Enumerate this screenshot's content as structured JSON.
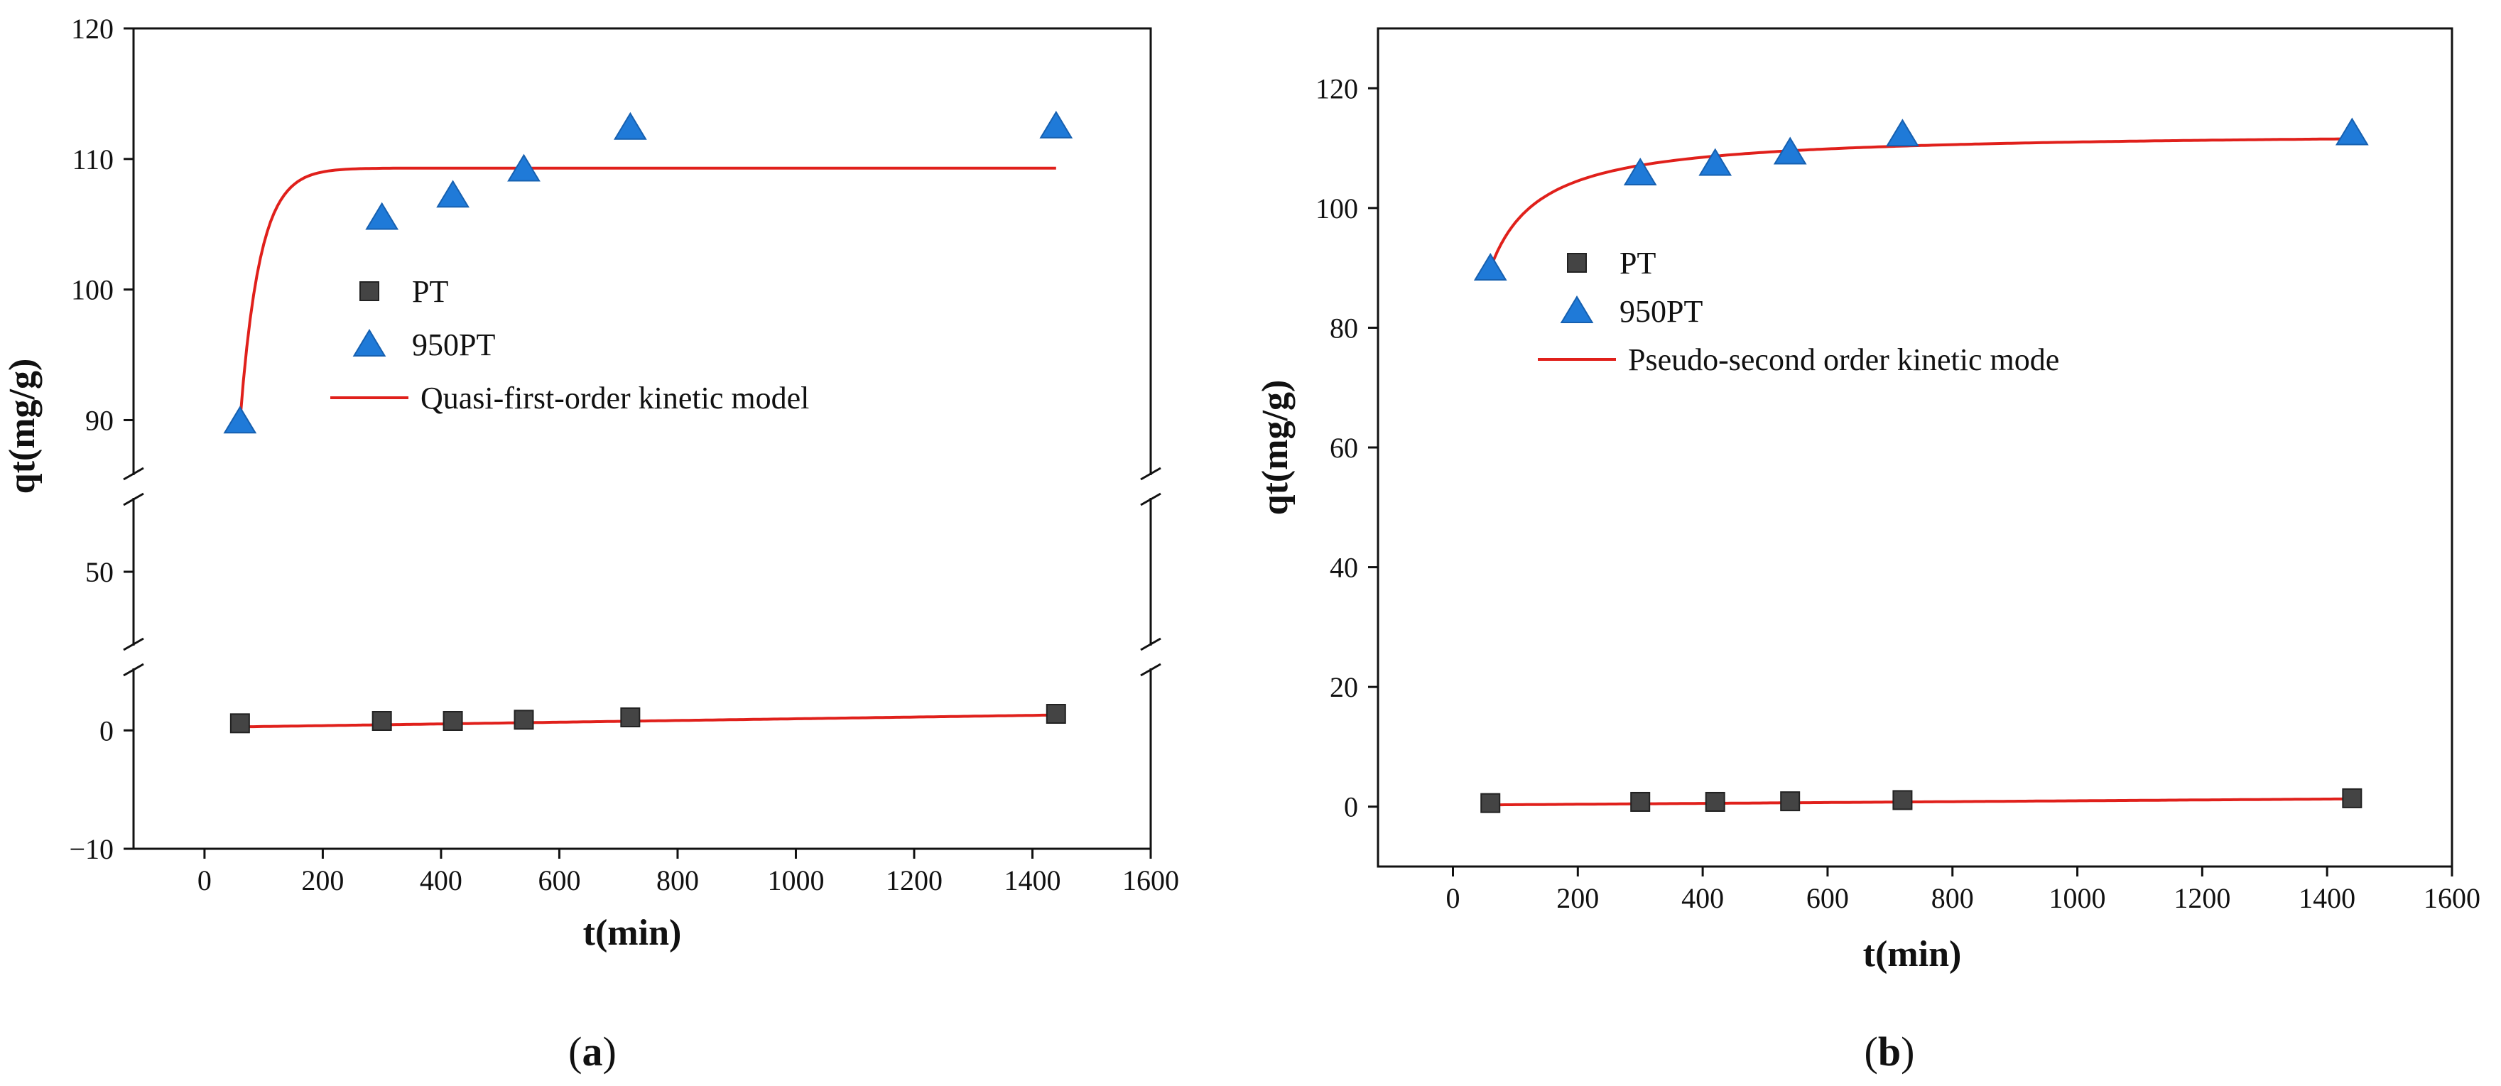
{
  "colors": {
    "axis": "#111111",
    "pt_marker": "#444444",
    "pt_marker_edge": "#222222",
    "tpt_marker": "#1f7ad8",
    "fit_line": "#e0201b",
    "background": "#ffffff"
  },
  "chart_data": [
    {
      "type": "scatter",
      "panel_label": "(a)",
      "panel_letter": "a",
      "xlabel": "t(min)",
      "ylabel": "qt(mg/g)",
      "xlim": [
        -120,
        1600
      ],
      "x_ticks": [
        0,
        200,
        400,
        600,
        800,
        1000,
        1200,
        1400,
        1600
      ],
      "x_tick_labels": [
        "0",
        "200",
        "400",
        "600",
        "800",
        "1000",
        "1200",
        "1400",
        "1600"
      ],
      "y_axis_broken": true,
      "y_segments": [
        {
          "range": [
            -10,
            5
          ],
          "ticks": [
            -10,
            0
          ],
          "tick_labels": [
            "−10",
            "0"
          ]
        },
        {
          "range": [
            40,
            60
          ],
          "ticks": [
            50
          ],
          "tick_labels": [
            "50"
          ]
        },
        {
          "range": [
            86,
            120
          ],
          "ticks": [
            90,
            100,
            110,
            120
          ],
          "tick_labels": [
            "90",
            "100",
            "110",
            "120"
          ]
        }
      ],
      "legend": {
        "position": "center-left",
        "entries": [
          {
            "label": "PT",
            "marker": "square",
            "color": "#444444"
          },
          {
            "label": "950PT",
            "marker": "triangle",
            "color": "#1f7ad8"
          },
          {
            "label": "Quasi-first-order kinetic model",
            "marker": "line",
            "color": "#e0201b"
          }
        ]
      },
      "series": [
        {
          "name": "PT",
          "marker": "square",
          "x": [
            60,
            300,
            420,
            540,
            720,
            1440
          ],
          "y": [
            0.6,
            0.8,
            0.8,
            0.9,
            1.1,
            1.4
          ]
        },
        {
          "name": "950PT",
          "marker": "triangle",
          "x": [
            60,
            300,
            420,
            540,
            720,
            1440
          ],
          "y": [
            89.9,
            105.5,
            107.2,
            109.2,
            112.4,
            112.5
          ]
        }
      ],
      "fits": [
        {
          "name": "Quasi-first-order kinetic model (950PT)",
          "model": "first-order",
          "qe": 109.3,
          "q0": 89.9,
          "k": 0.03,
          "x_range": [
            60,
            1440
          ]
        },
        {
          "name": "Quasi-first-order kinetic model (PT)",
          "model": "linear",
          "y_start": 0.3,
          "y_end": 1.3,
          "x_range": [
            60,
            1440
          ]
        }
      ]
    },
    {
      "type": "scatter",
      "panel_label": "(b)",
      "panel_letter": "b",
      "xlabel": "t(min)",
      "ylabel": "qt(mg/g)",
      "xlim": [
        -120,
        1600
      ],
      "x_ticks": [
        0,
        200,
        400,
        600,
        800,
        1000,
        1200,
        1400,
        1600
      ],
      "x_tick_labels": [
        "0",
        "200",
        "400",
        "600",
        "800",
        "1000",
        "1200",
        "1400",
        "1600"
      ],
      "ylim": [
        -10,
        130
      ],
      "y_ticks": [
        0,
        20,
        40,
        60,
        80,
        100,
        120
      ],
      "y_tick_labels": [
        "0",
        "20",
        "40",
        "60",
        "80",
        "100",
        "120"
      ],
      "legend": {
        "position": "center-left",
        "entries": [
          {
            "label": "PT",
            "marker": "square",
            "color": "#444444"
          },
          {
            "label": "950PT",
            "marker": "triangle",
            "color": "#1f7ad8"
          },
          {
            "label": "Pseudo-second order kinetic mode",
            "marker": "line",
            "color": "#e0201b"
          }
        ]
      },
      "series": [
        {
          "name": "PT",
          "marker": "square",
          "x": [
            60,
            300,
            420,
            540,
            720,
            1440
          ],
          "y": [
            0.6,
            0.8,
            0.8,
            0.9,
            1.1,
            1.4
          ]
        },
        {
          "name": "950PT",
          "marker": "triangle",
          "x": [
            60,
            300,
            420,
            540,
            720,
            1440
          ],
          "y": [
            89.9,
            105.8,
            107.4,
            109.3,
            112.3,
            112.5
          ]
        }
      ],
      "fits": [
        {
          "name": "Pseudo-second order kinetic mode (950PT)",
          "model": "second-order",
          "qe": 112.8,
          "t0": 60,
          "t_ref": 660,
          "q0": 89.9,
          "x_range": [
            60,
            1440
          ]
        },
        {
          "name": "Pseudo-second order kinetic mode (PT)",
          "model": "linear",
          "y_start": 0.3,
          "y_end": 1.3,
          "x_range": [
            60,
            1440
          ]
        }
      ]
    }
  ]
}
